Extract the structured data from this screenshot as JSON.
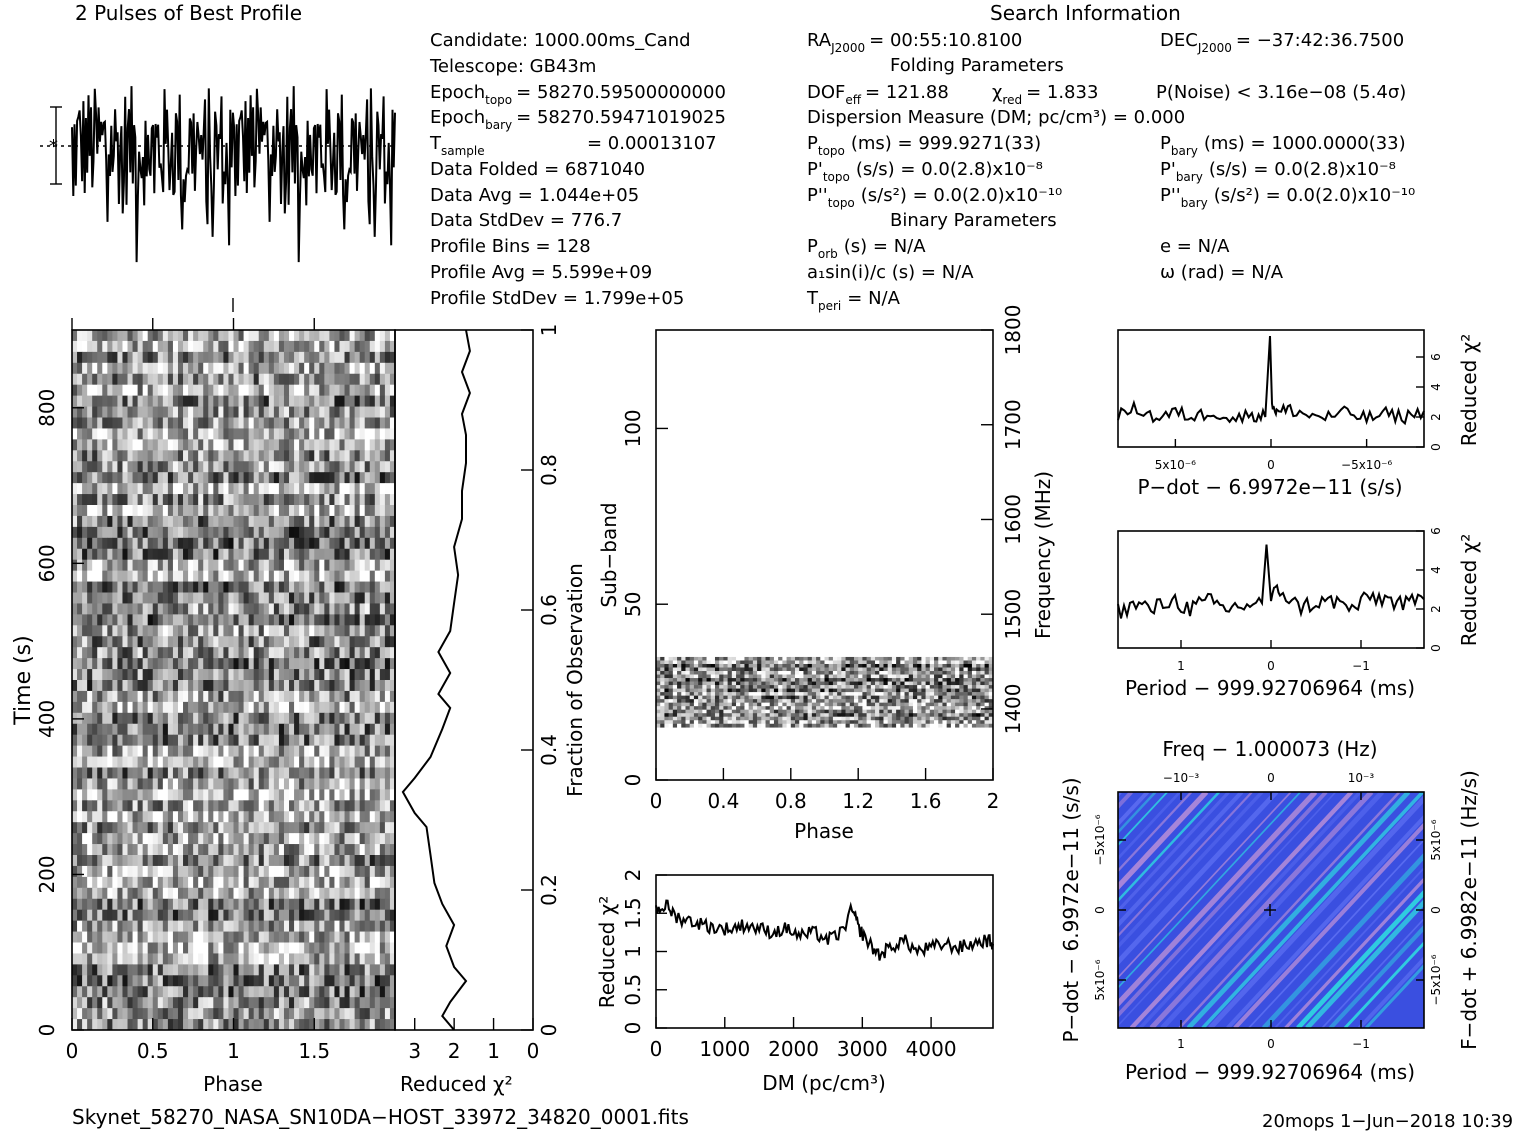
{
  "header": {
    "profile_title": "2 Pulses of Best Profile",
    "search_title": "Search Information",
    "folding_title": "Folding Parameters",
    "binary_title": "Binary Parameters"
  },
  "info": {
    "candidate": "Candidate:  1000.00ms_Cand",
    "telescope": "Telescope:  GB43m",
    "epoch_topo": "Epoch",
    "epoch_topo_sub": "topo",
    "epoch_topo_val": "= 58270.59500000000",
    "epoch_bary": "Epoch",
    "epoch_bary_sub": "bary",
    "epoch_bary_val": "= 58270.59471019025",
    "tsample": "T",
    "tsample_sub": "sample",
    "tsample_val": "=    0.00013107",
    "data_folded": "Data Folded      =    6871040",
    "data_avg": "Data Avg           =    1.044e+05",
    "data_std": "Data StdDev     =    776.7",
    "profile_bins": "Profile Bins       =    128",
    "profile_avg": "Profile Avg        =    5.599e+09",
    "profile_std": "Profile StdDev  =    1.799e+05",
    "ra": "RA",
    "ra_sub": "J2000",
    "ra_val": "= 00:55:10.8100",
    "dec": "DEC",
    "dec_sub": "J2000",
    "dec_val": "= −37:42:36.7500",
    "dof": "DOF",
    "dof_sub": "eff",
    "dof_val": "= 121.88",
    "chi": "χ",
    "chi_sub": "red",
    "chi_val": "= 1.833",
    "pnoise": "P(Noise) < 3.16e−08   (5.4σ)",
    "dm": "Dispersion Measure (DM; pc/cm³) = 0.000",
    "ptopo": "P",
    "ptopo_sub": "topo",
    "ptopo_val": "(ms) =   999.9271(33)",
    "pbary": "P",
    "pbary_sub": "bary",
    "pbary_val": "(ms) =   1000.0000(33)",
    "pdtopo": "P'",
    "pdtopo_sub": "topo",
    "pdtopo_val": "(s/s) = 0.0(2.8)x10⁻⁸",
    "pdbary": "P'",
    "pdbary_sub": "bary",
    "pdbary_val": "(s/s) = 0.0(2.8)x10⁻⁸",
    "pddtopo": "P''",
    "pddtopo_sub": "topo",
    "pddtopo_val": "(s/s²) = 0.0(2.0)x10⁻¹⁰",
    "pddbary": "P''",
    "pddbary_sub": "bary",
    "pddbary_val": "(s/s²) = 0.0(2.0)x10⁻¹⁰",
    "porb": "P",
    "porb_sub": "orb",
    "porb_val": "(s) = N/A",
    "ecc": "e = N/A",
    "a1": "a₁sin(i)/c (s) = N/A",
    "omega": "ω (rad) = N/A",
    "tperi": "T",
    "tperi_sub": "peri",
    "tperi_val": "= N/A"
  },
  "footer": {
    "filename": "Skynet_58270_NASA_SN10DA−HOST_33972_34820_0001.fits",
    "stamp": "20mops   1−Jun−2018 10:39"
  },
  "chart_data": [
    {
      "type": "line",
      "name": "profile",
      "title": "2 Pulses of Best Profile",
      "xlim": [
        0,
        2
      ],
      "note_points": 256
    },
    {
      "type": "heatmap",
      "name": "time-phase",
      "xlabel": "Phase",
      "ylabel": "Time (s)",
      "xlim": [
        0,
        2
      ],
      "ylim": [
        0,
        900
      ],
      "xticks": [
        "0",
        "0.5",
        "1",
        "1.5"
      ],
      "yticks": [
        "0",
        "200",
        "400",
        "600",
        "800"
      ]
    },
    {
      "type": "line",
      "name": "chi-vs-time",
      "xlabel": "Reduced χ²",
      "ylabel": "Fraction of Observation",
      "xlim": [
        3.5,
        0
      ],
      "ylim": [
        0,
        1
      ],
      "xticks": [
        "3",
        "2",
        "1",
        "0"
      ],
      "yticks": [
        "0",
        "0.2",
        "0.4",
        "0.6",
        "0.8",
        "1"
      ],
      "points": [
        [
          2.0,
          0.0
        ],
        [
          2.3,
          0.02
        ],
        [
          2.1,
          0.04
        ],
        [
          1.7,
          0.07
        ],
        [
          2.0,
          0.09
        ],
        [
          2.2,
          0.12
        ],
        [
          2.0,
          0.15
        ],
        [
          2.3,
          0.18
        ],
        [
          2.5,
          0.21
        ],
        [
          2.6,
          0.25
        ],
        [
          2.7,
          0.29
        ],
        [
          3.0,
          0.31
        ],
        [
          3.3,
          0.34
        ],
        [
          3.0,
          0.36
        ],
        [
          2.6,
          0.39
        ],
        [
          2.3,
          0.43
        ],
        [
          2.1,
          0.46
        ],
        [
          2.4,
          0.48
        ],
        [
          2.1,
          0.51
        ],
        [
          2.4,
          0.54
        ],
        [
          2.1,
          0.57
        ],
        [
          2.0,
          0.61
        ],
        [
          1.9,
          0.65
        ],
        [
          2.0,
          0.69
        ],
        [
          1.8,
          0.73
        ],
        [
          1.8,
          0.77
        ],
        [
          1.7,
          0.81
        ],
        [
          1.7,
          0.85
        ],
        [
          1.8,
          0.88
        ],
        [
          1.6,
          0.91
        ],
        [
          1.8,
          0.94
        ],
        [
          1.6,
          0.97
        ],
        [
          1.7,
          1.0
        ]
      ]
    },
    {
      "type": "heatmap",
      "name": "subband-phase",
      "xlabel": "Phase",
      "ylabel": "Sub−band",
      "ylabel2": "Frequency (MHz)",
      "xlim": [
        0,
        2
      ],
      "ylim": [
        0,
        128
      ],
      "y2lim": [
        1325,
        1800
      ],
      "band": [
        15,
        35
      ],
      "xticks": [
        "0",
        "0.4",
        "0.8",
        "1.2",
        "1.6",
        "2"
      ],
      "yticks": [
        "0",
        "50",
        "100"
      ],
      "y2ticks": [
        "1400",
        "1500",
        "1600",
        "1700",
        "1800"
      ]
    },
    {
      "type": "line",
      "name": "dm-curve",
      "xlabel": "DM (pc/cm³)",
      "ylabel": "Reduced χ²",
      "xlim": [
        0,
        4900
      ],
      "ylim": [
        0,
        2
      ],
      "xticks": [
        "0",
        "1000",
        "2000",
        "3000",
        "4000"
      ],
      "yticks": [
        "0",
        "0.5",
        "1",
        "1.5",
        "2"
      ],
      "points": [
        [
          0,
          1.55
        ],
        [
          150,
          1.6
        ],
        [
          300,
          1.45
        ],
        [
          500,
          1.4
        ],
        [
          700,
          1.35
        ],
        [
          900,
          1.3
        ],
        [
          1100,
          1.3
        ],
        [
          1300,
          1.35
        ],
        [
          1500,
          1.3
        ],
        [
          1700,
          1.25
        ],
        [
          1900,
          1.3
        ],
        [
          2100,
          1.2
        ],
        [
          2300,
          1.25
        ],
        [
          2500,
          1.15
        ],
        [
          2700,
          1.25
        ],
        [
          2850,
          1.55
        ],
        [
          2950,
          1.3
        ],
        [
          3100,
          1.1
        ],
        [
          3250,
          0.95
        ],
        [
          3400,
          1.05
        ],
        [
          3600,
          1.15
        ],
        [
          3800,
          1.0
        ],
        [
          4000,
          1.05
        ],
        [
          4200,
          1.1
        ],
        [
          4400,
          1.05
        ],
        [
          4600,
          1.1
        ],
        [
          4800,
          1.15
        ],
        [
          4900,
          1.1
        ]
      ]
    },
    {
      "type": "line",
      "name": "pdot-curve",
      "xlabel": "P−dot − 6.9972e−11 (s/s)",
      "ylabel": "Reduced χ²",
      "xlim": [
        8e-06,
        -8e-06
      ],
      "ylim": [
        0,
        7.8
      ],
      "xticks": [
        "5x10⁻⁶",
        "0",
        "−5x10⁻⁶"
      ],
      "yticks": [
        "0",
        "2",
        "4",
        "6"
      ],
      "points": [
        [
          8e-06,
          2.1
        ],
        [
          7e-06,
          2.6
        ],
        [
          6e-06,
          1.9
        ],
        [
          5e-06,
          2.3
        ],
        [
          4e-06,
          2.0
        ],
        [
          3e-06,
          2.4
        ],
        [
          2e-06,
          1.8
        ],
        [
          1e-06,
          2.2
        ],
        [
          3e-07,
          2.0
        ],
        [
          5e-08,
          7.4
        ],
        [
          -5e-08,
          3.0
        ],
        [
          -3e-07,
          2.3
        ],
        [
          -1e-06,
          2.5
        ],
        [
          -2e-06,
          2.1
        ],
        [
          -3e-06,
          2.0
        ],
        [
          -4e-06,
          2.3
        ],
        [
          -5e-06,
          1.9
        ],
        [
          -6e-06,
          2.2
        ],
        [
          -7e-06,
          2.0
        ],
        [
          -8e-06,
          2.4
        ]
      ]
    },
    {
      "type": "line",
      "name": "period-curve",
      "xlabel": "Period − 999.92706964 (ms)",
      "ylabel": "Reduced χ²",
      "xlim": [
        1.7,
        -1.7
      ],
      "ylim": [
        0,
        6
      ],
      "xticks": [
        "1",
        "0",
        "−1"
      ],
      "yticks": [
        "0",
        "2",
        "4",
        "6"
      ],
      "points": [
        [
          1.7,
          1.9
        ],
        [
          1.5,
          2.2
        ],
        [
          1.3,
          2.0
        ],
        [
          1.1,
          2.5
        ],
        [
          0.9,
          2.0
        ],
        [
          0.7,
          2.4
        ],
        [
          0.5,
          2.0
        ],
        [
          0.3,
          2.2
        ],
        [
          0.1,
          2.3
        ],
        [
          0.05,
          5.3
        ],
        [
          0.0,
          2.6
        ],
        [
          -0.1,
          3.0
        ],
        [
          -0.3,
          2.1
        ],
        [
          -0.5,
          2.3
        ],
        [
          -0.7,
          2.4
        ],
        [
          -0.9,
          2.0
        ],
        [
          -1.1,
          2.6
        ],
        [
          -1.3,
          2.5
        ],
        [
          -1.5,
          2.2
        ],
        [
          -1.7,
          2.5
        ]
      ]
    },
    {
      "type": "heatmap",
      "name": "period-pdot-plane",
      "title": "Freq − 1.000073 (Hz)",
      "xlabel": "Period − 999.92706964 (ms)",
      "ylabel": "P−dot − 6.9972e−11 (s/s)",
      "ylabel2": "F−dot + 6.9982e−11 (Hz/s)",
      "xticks": [
        "1",
        "0",
        "−1"
      ],
      "x2ticks": [
        "−10⁻³",
        "0",
        "10⁻³"
      ],
      "yticks": [
        "−5x10⁻⁶",
        "0",
        "5x10⁻⁶"
      ],
      "y2ticks": [
        "5x10⁻⁶",
        "0",
        "−5x10⁻⁶"
      ],
      "colors": [
        "#3a4fe0",
        "#5a6cf0",
        "#b08ad8",
        "#2fd0e0"
      ]
    }
  ]
}
